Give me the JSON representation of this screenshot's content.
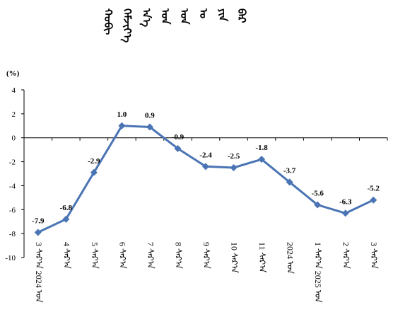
{
  "chart_data": {
    "type": "line",
    "title_lines": [
      "ᠬᠤᠪᠢ",
      "ᠬᠡᠮᠵᠢᠶ᠎ᠡ",
      "ᠡᠨ᠎ᠡ",
      "ᠤᠨ",
      "ᠣᠨ",
      "ᠤ",
      "ᠶᠢᠨ",
      "ᠪᠠᠷ"
    ],
    "unit_label": "(%)",
    "categories": [
      "3 ᠰᠠᠷ᠎ᠠ 2024 ᠣᠨ",
      "4 ᠰᠠᠷ᠎ᠠ",
      "5 ᠰᠠᠷ᠎ᠠ",
      "6 ᠰᠠᠷ᠎ᠠ",
      "7 ᠰᠠᠷ᠎ᠠ",
      "8 ᠰᠠᠷ᠎ᠠ",
      "9 ᠰᠠᠷ᠎ᠠ",
      "10 ᠰᠠᠷ᠎ᠠ",
      "11 ᠰᠠᠷ᠎ᠠ",
      "2024 ᠣᠨ",
      "1 ᠰᠠᠷ᠎ᠠ 2025 ᠣᠨ",
      "2 ᠰᠠᠷ᠎ᠠ",
      "3 ᠰᠠᠷ᠎ᠠ"
    ],
    "values": [
      -7.9,
      -6.8,
      -2.9,
      1.0,
      0.9,
      -0.9,
      -2.4,
      -2.5,
      -1.8,
      -3.7,
      -5.6,
      -6.3,
      -5.2
    ],
    "data_labels": [
      "-7.9",
      "-6.8",
      "-2.9",
      "1.0",
      "0.9",
      "-0.9",
      "-2.4",
      "-2.5",
      "-1.8",
      "-3.7",
      "-5.6",
      "-6.3",
      "-5.2"
    ],
    "ylim": [
      -10,
      4
    ],
    "yticks": [
      "4",
      "2",
      "0",
      "-2",
      "-4",
      "-6",
      "-8",
      "-10"
    ],
    "ytick_values": [
      4,
      2,
      0,
      -2,
      -4,
      -6,
      -8,
      -10
    ],
    "grid": false,
    "legend": "none",
    "colors": {
      "line": "#4a74b4",
      "marker": "#4a74b4",
      "axis": "#000000"
    }
  }
}
